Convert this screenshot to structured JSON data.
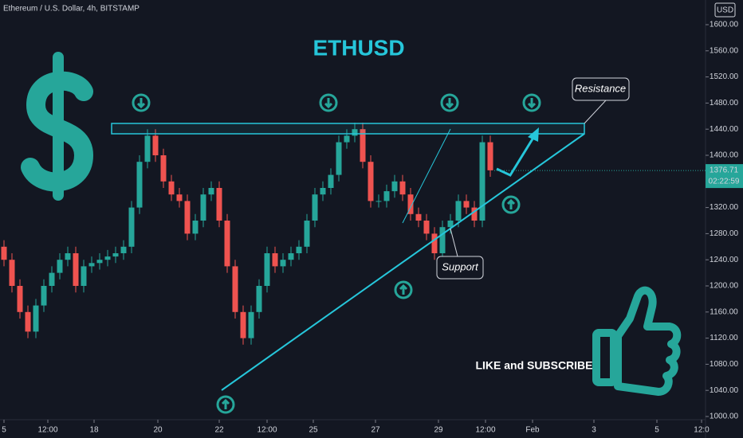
{
  "chart_data": {
    "type": "candlestick",
    "header": "Ethereum / U.S. Dollar, 4h, BITSTAMP",
    "currency": "USD",
    "title": "ETHUSD",
    "annotations": [
      "Resistance",
      "Support",
      "LIKE and SUBSCRIBE"
    ],
    "last_price": 1376.71,
    "countdown": "02:22:59",
    "up_color": "#26a69a",
    "down_color": "#ef5350",
    "open": [
      1260,
      1240,
      1200,
      1160,
      1130,
      1170,
      1200,
      1220,
      1240,
      1250,
      1200,
      1230,
      1235,
      1240,
      1245,
      1250,
      1260,
      1320,
      1390,
      1430,
      1400,
      1360,
      1340,
      1330,
      1280,
      1300,
      1340,
      1350,
      1300,
      1230,
      1160,
      1120,
      1160,
      1200,
      1250,
      1230,
      1240,
      1250,
      1260,
      1300,
      1340,
      1350,
      1370,
      1420,
      1430,
      1440,
      1390,
      1330,
      1330,
      1345,
      1360,
      1340,
      1310,
      1300,
      1280,
      1250,
      1290,
      1300,
      1330,
      1320,
      1300,
      1420
    ],
    "high": [
      1270,
      1250,
      1210,
      1170,
      1180,
      1210,
      1230,
      1250,
      1260,
      1260,
      1240,
      1245,
      1250,
      1255,
      1260,
      1270,
      1330,
      1400,
      1440,
      1440,
      1410,
      1370,
      1350,
      1340,
      1310,
      1350,
      1360,
      1360,
      1310,
      1240,
      1170,
      1170,
      1210,
      1260,
      1260,
      1250,
      1260,
      1270,
      1310,
      1350,
      1360,
      1380,
      1430,
      1440,
      1450,
      1450,
      1400,
      1340,
      1355,
      1370,
      1370,
      1350,
      1320,
      1310,
      1290,
      1300,
      1310,
      1340,
      1340,
      1330,
      1430,
      1430
    ],
    "low": [
      1230,
      1190,
      1150,
      1120,
      1120,
      1160,
      1190,
      1210,
      1230,
      1190,
      1190,
      1220,
      1225,
      1230,
      1235,
      1240,
      1250,
      1310,
      1380,
      1390,
      1350,
      1330,
      1320,
      1270,
      1270,
      1290,
      1330,
      1290,
      1220,
      1150,
      1110,
      1110,
      1150,
      1190,
      1220,
      1220,
      1230,
      1240,
      1250,
      1290,
      1330,
      1340,
      1360,
      1410,
      1420,
      1380,
      1320,
      1320,
      1320,
      1335,
      1330,
      1300,
      1290,
      1270,
      1240,
      1240,
      1280,
      1290,
      1310,
      1290,
      1290,
      1367
    ],
    "close": [
      1240,
      1200,
      1160,
      1130,
      1170,
      1200,
      1220,
      1240,
      1250,
      1200,
      1230,
      1235,
      1240,
      1245,
      1250,
      1260,
      1320,
      1390,
      1430,
      1400,
      1360,
      1340,
      1330,
      1280,
      1300,
      1340,
      1350,
      1300,
      1230,
      1160,
      1120,
      1160,
      1200,
      1250,
      1230,
      1240,
      1250,
      1260,
      1300,
      1340,
      1350,
      1370,
      1420,
      1430,
      1440,
      1390,
      1330,
      1330,
      1345,
      1360,
      1340,
      1310,
      1300,
      1280,
      1250,
      1290,
      1300,
      1330,
      1320,
      1300,
      1420,
      1377
    ],
    "xlim": [
      0,
      88.5
    ],
    "xticks": [
      {
        "value": 0.5,
        "label": "5"
      },
      {
        "value": 6,
        "label": "12:00"
      },
      {
        "value": 11.8,
        "label": "18"
      },
      {
        "value": 19.8,
        "label": "20"
      },
      {
        "value": 27.5,
        "label": "22"
      },
      {
        "value": 33.5,
        "label": "12:00"
      },
      {
        "value": 39.3,
        "label": "25"
      },
      {
        "value": 47.1,
        "label": "27"
      },
      {
        "value": 55,
        "label": "29"
      },
      {
        "value": 60.9,
        "label": "12:00"
      },
      {
        "value": 66.8,
        "label": "Feb"
      },
      {
        "value": 74.5,
        "label": "3"
      },
      {
        "value": 82.4,
        "label": "5"
      },
      {
        "value": 88,
        "label": "12:0"
      }
    ],
    "ylim": [
      1000,
      1600
    ],
    "yticks": [
      {
        "value": 1000,
        "label": "1000.00"
      },
      {
        "value": 1040,
        "label": "1040.00"
      },
      {
        "value": 1080,
        "label": "1080.00"
      },
      {
        "value": 1120,
        "label": "1120.00"
      },
      {
        "value": 1160,
        "label": "1160.00"
      },
      {
        "value": 1200,
        "label": "1200.00"
      },
      {
        "value": 1240,
        "label": "1240.00"
      },
      {
        "value": 1280,
        "label": "1280.00"
      },
      {
        "value": 1320,
        "label": "1320.00"
      },
      {
        "value": 1360,
        "label": "1360.00"
      },
      {
        "value": 1400,
        "label": "1400.00"
      },
      {
        "value": 1440,
        "label": "1440.00"
      },
      {
        "value": 1480,
        "label": "1480.00"
      },
      {
        "value": 1520,
        "label": "1520.00"
      },
      {
        "value": 1560,
        "label": "1560.00"
      },
      {
        "value": 1600,
        "label": "1600.00"
      }
    ]
  }
}
